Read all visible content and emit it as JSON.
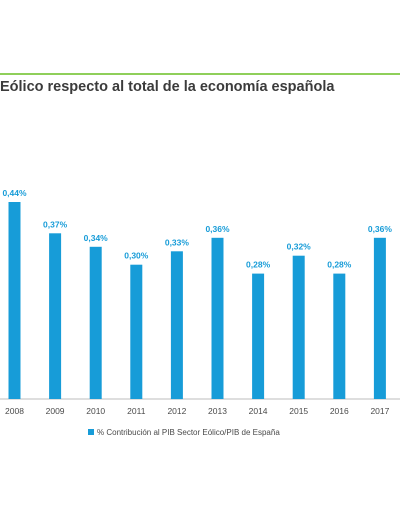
{
  "header": {
    "title": "Eólico respecto al total de la economía española"
  },
  "chart_data": {
    "type": "bar",
    "categories": [
      "2008",
      "2009",
      "2010",
      "2011",
      "2012",
      "2013",
      "2014",
      "2015",
      "2016",
      "2017"
    ],
    "series": [
      {
        "name": "% Contribución al PIB Sector Eólico/PIB de España",
        "values": [
          0.44,
          0.37,
          0.34,
          0.3,
          0.33,
          0.36,
          0.28,
          0.32,
          0.28,
          0.36
        ],
        "labels": [
          "0,44%",
          "0,37%",
          "0,34%",
          "0,30%",
          "0,33%",
          "0,36%",
          "0,28%",
          "0,32%",
          "0,28%",
          "0,36%"
        ]
      }
    ],
    "ylim": [
      0,
      0.44
    ],
    "grid": false,
    "legend_position": "bottom",
    "colors": {
      "bar": "#179cd8",
      "accent_line": "#8fcf5a"
    }
  }
}
